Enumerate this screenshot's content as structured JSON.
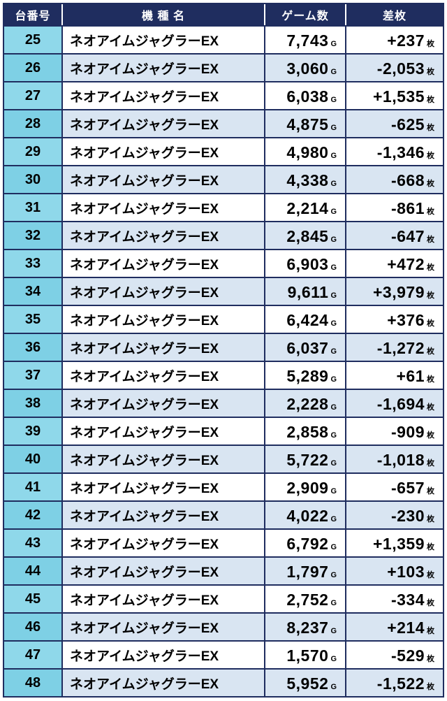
{
  "colors": {
    "header_bg": "#1f2d5f",
    "border": "#1f2d5f",
    "row_light_bg": "#ffffff",
    "row_shade_bg": "#d9e5f2",
    "no_cell_light": "#8fd8ea",
    "no_cell_shade": "#7ed0e5",
    "header_text": "#ffffff",
    "body_text": "#000000"
  },
  "chart_data": {
    "type": "table",
    "columns": [
      "台番号",
      "機 種 名",
      "ゲーム数",
      "差枚"
    ],
    "unit_game": "G",
    "unit_diff": "枚",
    "rows": [
      {
        "no": "25",
        "name": "ネオアイムジャグラーEX",
        "games": "7,743",
        "diff": "+237"
      },
      {
        "no": "26",
        "name": "ネオアイムジャグラーEX",
        "games": "3,060",
        "diff": "-2,053"
      },
      {
        "no": "27",
        "name": "ネオアイムジャグラーEX",
        "games": "6,038",
        "diff": "+1,535"
      },
      {
        "no": "28",
        "name": "ネオアイムジャグラーEX",
        "games": "4,875",
        "diff": "-625"
      },
      {
        "no": "29",
        "name": "ネオアイムジャグラーEX",
        "games": "4,980",
        "diff": "-1,346"
      },
      {
        "no": "30",
        "name": "ネオアイムジャグラーEX",
        "games": "4,338",
        "diff": "-668"
      },
      {
        "no": "31",
        "name": "ネオアイムジャグラーEX",
        "games": "2,214",
        "diff": "-861"
      },
      {
        "no": "32",
        "name": "ネオアイムジャグラーEX",
        "games": "2,845",
        "diff": "-647"
      },
      {
        "no": "33",
        "name": "ネオアイムジャグラーEX",
        "games": "6,903",
        "diff": "+472"
      },
      {
        "no": "34",
        "name": "ネオアイムジャグラーEX",
        "games": "9,611",
        "diff": "+3,979"
      },
      {
        "no": "35",
        "name": "ネオアイムジャグラーEX",
        "games": "6,424",
        "diff": "+376"
      },
      {
        "no": "36",
        "name": "ネオアイムジャグラーEX",
        "games": "6,037",
        "diff": "-1,272"
      },
      {
        "no": "37",
        "name": "ネオアイムジャグラーEX",
        "games": "5,289",
        "diff": "+61"
      },
      {
        "no": "38",
        "name": "ネオアイムジャグラーEX",
        "games": "2,228",
        "diff": "-1,694"
      },
      {
        "no": "39",
        "name": "ネオアイムジャグラーEX",
        "games": "2,858",
        "diff": "-909"
      },
      {
        "no": "40",
        "name": "ネオアイムジャグラーEX",
        "games": "5,722",
        "diff": "-1,018"
      },
      {
        "no": "41",
        "name": "ネオアイムジャグラーEX",
        "games": "2,909",
        "diff": "-657"
      },
      {
        "no": "42",
        "name": "ネオアイムジャグラーEX",
        "games": "4,022",
        "diff": "-230"
      },
      {
        "no": "43",
        "name": "ネオアイムジャグラーEX",
        "games": "6,792",
        "diff": "+1,359"
      },
      {
        "no": "44",
        "name": "ネオアイムジャグラーEX",
        "games": "1,797",
        "diff": "+103"
      },
      {
        "no": "45",
        "name": "ネオアイムジャグラーEX",
        "games": "2,752",
        "diff": "-334"
      },
      {
        "no": "46",
        "name": "ネオアイムジャグラーEX",
        "games": "8,237",
        "diff": "+214"
      },
      {
        "no": "47",
        "name": "ネオアイムジャグラーEX",
        "games": "1,570",
        "diff": "-529"
      },
      {
        "no": "48",
        "name": "ネオアイムジャグラーEX",
        "games": "5,952",
        "diff": "-1,522"
      }
    ]
  }
}
